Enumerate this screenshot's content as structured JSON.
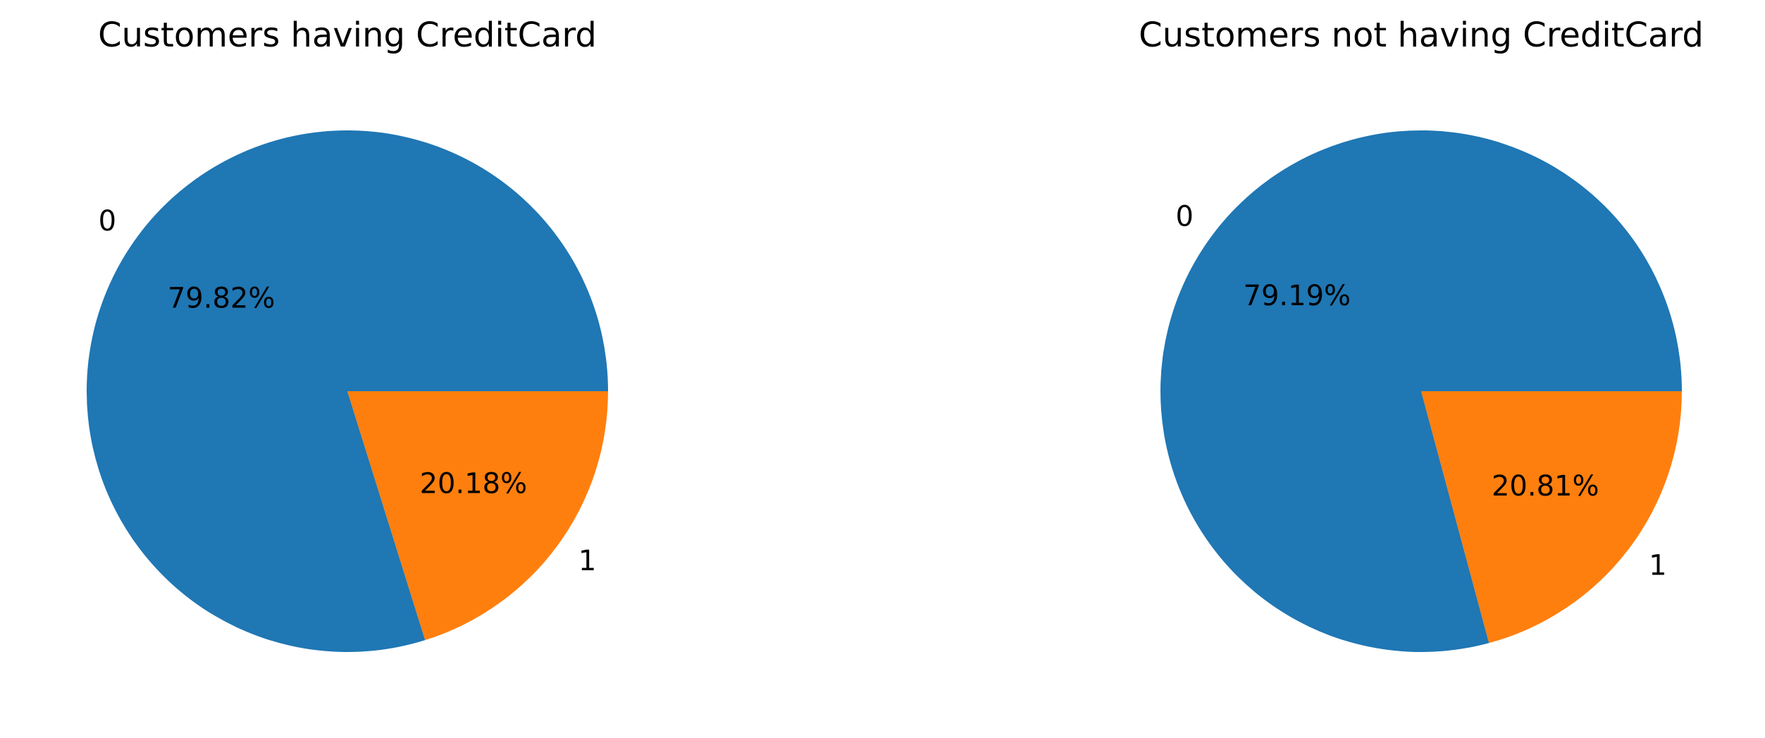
{
  "chart_data": [
    {
      "type": "pie",
      "title": "Customers having CreditCard",
      "slices": [
        {
          "label": "0",
          "value": 79.82,
          "pct_label": "79.82%",
          "color": "#1f77b4"
        },
        {
          "label": "1",
          "value": 20.18,
          "pct_label": "20.18%",
          "color": "#ff7f0e"
        }
      ],
      "start_angle": 0,
      "direction": "counterclockwise"
    },
    {
      "type": "pie",
      "title": "Customers not having CreditCard",
      "slices": [
        {
          "label": "0",
          "value": 79.19,
          "pct_label": "79.19%",
          "color": "#1f77b4"
        },
        {
          "label": "1",
          "value": 20.81,
          "pct_label": "20.81%",
          "color": "#ff7f0e"
        }
      ],
      "start_angle": 0,
      "direction": "counterclockwise"
    }
  ]
}
